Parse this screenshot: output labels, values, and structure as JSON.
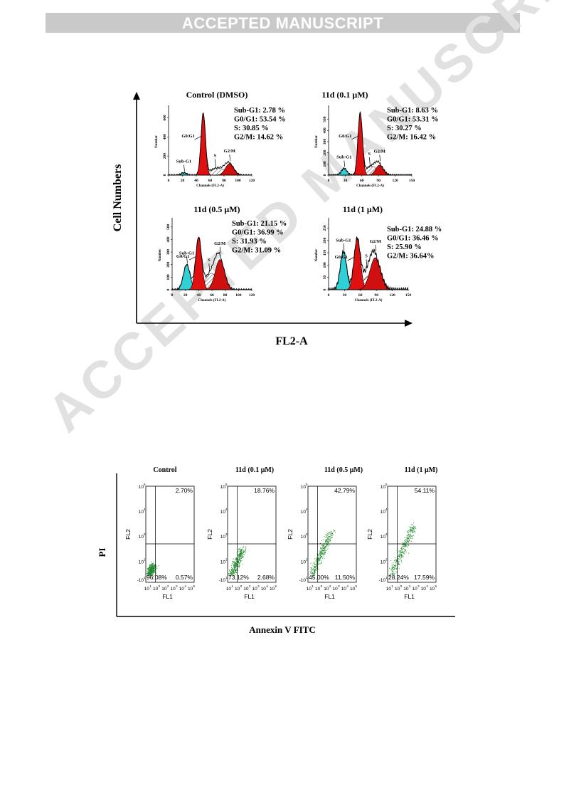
{
  "banner": "ACCEPTED MANUSCRIPT",
  "watermark": "ACCEPTED MANUSCRIPT",
  "cell_cycle": {
    "y_axis_title": "Cell Numbers",
    "x_axis_title": "FL2-A",
    "panel_y_label": "Number",
    "panel_x_label": "Channels (FL2-A)",
    "peak_labels": {
      "sub": "Sub-G1",
      "g0": "G0/G1",
      "s": "S",
      "g2": "G2/M"
    },
    "colors": {
      "sub": "#2fd0d6",
      "g0": "#e01010",
      "g2": "#d01010",
      "s": "#a8a8a8",
      "outline": "#000000"
    },
    "panels": [
      {
        "title": "Control (DMSO)",
        "stats": [
          "Sub-G1: 2.78 %",
          "G0/G1: 53.54 %",
          "S: 30.85 %",
          "G2/M: 14.62 %"
        ],
        "xticks": [
          "0",
          "20",
          "40",
          "60",
          "80",
          "100",
          "120"
        ],
        "xlim": [
          0,
          120
        ],
        "yticks": [
          "0",
          "200",
          "400",
          "600"
        ],
        "ylim": [
          0,
          700
        ],
        "sub": {
          "mu": 22,
          "sd": 4,
          "amp": 25
        },
        "g0": {
          "mu": 50,
          "sd": 3.2,
          "amp": 650
        },
        "g2": {
          "mu": 88,
          "sd": 6,
          "amp": 120
        },
        "s": {
          "from": 52,
          "to": 90,
          "amp": 75
        }
      },
      {
        "title": "11d (0.1 μM)",
        "stats": [
          "Sub-G1: 8.63 %",
          "G0/G1: 53.31 %",
          "S: 30.27 %",
          "G2/M: 16.42 %"
        ],
        "xticks": [
          "0",
          "30",
          "60",
          "90",
          "120",
          "150"
        ],
        "xlim": [
          0,
          150
        ],
        "yticks": [
          "0",
          "100",
          "200",
          "300",
          "400",
          "500"
        ],
        "ylim": [
          0,
          600
        ],
        "sub": {
          "mu": 28,
          "sd": 5,
          "amp": 60
        },
        "g0": {
          "mu": 57,
          "sd": 4,
          "amp": 560
        },
        "g2": {
          "mu": 92,
          "sd": 7,
          "amp": 90
        },
        "s": {
          "from": 60,
          "to": 95,
          "amp": 80
        }
      },
      {
        "title": "11d (0.5 μM)",
        "stats": [
          "Sub-G1: 21.15 %",
          "G0/G1: 36.99 %",
          "S: 31.93 %",
          "G2/M: 31.09 %"
        ],
        "xticks": [
          "0",
          "20",
          "40",
          "60",
          "80",
          "100",
          "120"
        ],
        "xlim": [
          0,
          120
        ],
        "yticks": [
          "0",
          "100",
          "200",
          "300",
          "400",
          "500"
        ],
        "ylim": [
          0,
          550
        ],
        "sub": {
          "mu": 22,
          "sd": 5,
          "amp": 200
        },
        "g0": {
          "mu": 40,
          "sd": 4.5,
          "amp": 420
        },
        "g2": {
          "mu": 72,
          "sd": 7,
          "amp": 240
        },
        "s": {
          "from": 44,
          "to": 75,
          "amp": 130
        }
      },
      {
        "title": "11d (1 μM)",
        "stats": [
          "Sub-G1: 24.88 %",
          "G0/G1: 36.46 %",
          "S: 25.90 %",
          "G2/M: 36.64%"
        ],
        "xticks": [
          "0",
          "30",
          "60",
          "90",
          "120",
          "150"
        ],
        "xlim": [
          0,
          150
        ],
        "yticks": [
          "0",
          "50",
          "100",
          "150",
          "200",
          "250"
        ],
        "ylim": [
          0,
          280
        ],
        "sub": {
          "mu": 28,
          "sd": 6,
          "amp": 155
        },
        "g0": {
          "mu": 54,
          "sd": 6,
          "amp": 210
        },
        "g2": {
          "mu": 88,
          "sd": 10,
          "amp": 130
        },
        "s": {
          "from": 58,
          "to": 92,
          "amp": 55
        }
      }
    ]
  },
  "apoptosis": {
    "y_axis_title": "PI",
    "x_axis_title": "Annexin V FITC",
    "panel_y_label": "FL2",
    "panel_x_label": "FL1",
    "xtick_labels": [
      "10",
      "10",
      "10",
      "10",
      "10",
      "10"
    ],
    "xtick_exps": [
      "1",
      "0",
      "2",
      "3",
      "4",
      "5"
    ],
    "ytick_labels": [
      "10",
      "10",
      "10",
      "10",
      "-10"
    ],
    "ytick_exps": [
      "5",
      "4",
      "3",
      "2",
      "1"
    ],
    "dot_color": "#1f8a2a",
    "panels": [
      {
        "title": "Control",
        "upper_right": "2.70%",
        "lower_left": "96.08%",
        "lower_right": "0.57%",
        "spread": 0.15
      },
      {
        "title": "11d (0.1 μM)",
        "upper_right": "18.76%",
        "lower_left": "73.12%",
        "lower_right": "2.68%",
        "spread": 0.45
      },
      {
        "title": "11d (0.5 μM)",
        "upper_right": "42.79%",
        "lower_left": "45.00%",
        "lower_right": "11.50%",
        "spread": 0.75
      },
      {
        "title": "11d (1 μM)",
        "upper_right": "54.11%",
        "lower_left": "28.24%",
        "lower_right": "17.59%",
        "spread": 0.85
      }
    ]
  }
}
